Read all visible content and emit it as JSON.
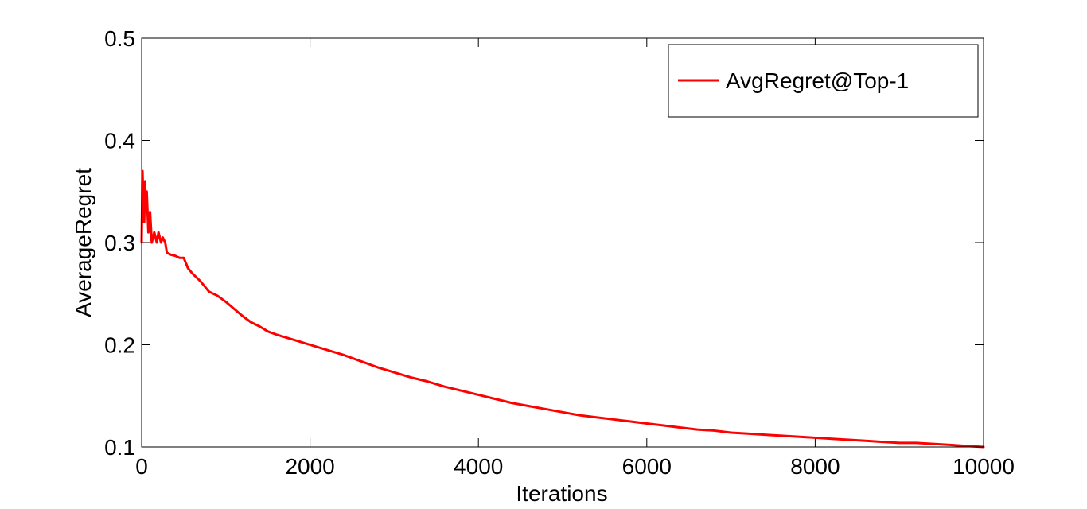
{
  "chart_data": {
    "type": "line",
    "title": "",
    "xlabel": "Iterations",
    "ylabel": "AverageRegret",
    "xlim": [
      0,
      10000
    ],
    "ylim": [
      0.1,
      0.5
    ],
    "xticks": [
      0,
      2000,
      4000,
      6000,
      8000,
      10000
    ],
    "yticks": [
      0.1,
      0.2,
      0.3,
      0.4,
      0.5
    ],
    "xtick_labels": [
      "0",
      "2000",
      "4000",
      "6000",
      "8000",
      "10000"
    ],
    "ytick_labels": [
      "0.1",
      "0.2",
      "0.3",
      "0.4",
      "0.5"
    ],
    "grid": false,
    "legend": {
      "position": "top-right"
    },
    "series": [
      {
        "name": "AvgRegret@Top-1",
        "color": "#ff0000",
        "x": [
          0,
          10,
          20,
          30,
          40,
          50,
          60,
          80,
          100,
          120,
          150,
          180,
          200,
          230,
          250,
          280,
          300,
          350,
          400,
          450,
          500,
          550,
          600,
          700,
          800,
          900,
          1000,
          1100,
          1200,
          1300,
          1400,
          1500,
          1600,
          1800,
          2000,
          2200,
          2400,
          2600,
          2800,
          3000,
          3200,
          3400,
          3600,
          3800,
          4000,
          4200,
          4400,
          4600,
          4800,
          5000,
          5200,
          5400,
          5600,
          5800,
          6000,
          6200,
          6400,
          6600,
          6800,
          7000,
          7200,
          7400,
          7600,
          7800,
          8000,
          8200,
          8400,
          8600,
          8800,
          9000,
          9200,
          9400,
          9600,
          9800,
          10000
        ],
        "y": [
          0.3,
          0.37,
          0.34,
          0.32,
          0.36,
          0.33,
          0.35,
          0.31,
          0.33,
          0.3,
          0.31,
          0.3,
          0.31,
          0.3,
          0.305,
          0.3,
          0.29,
          0.288,
          0.287,
          0.285,
          0.285,
          0.275,
          0.27,
          0.262,
          0.252,
          0.248,
          0.242,
          0.235,
          0.228,
          0.222,
          0.218,
          0.213,
          0.21,
          0.205,
          0.2,
          0.195,
          0.19,
          0.184,
          0.178,
          0.173,
          0.168,
          0.164,
          0.159,
          0.155,
          0.151,
          0.147,
          0.143,
          0.14,
          0.137,
          0.134,
          0.131,
          0.129,
          0.127,
          0.125,
          0.123,
          0.121,
          0.119,
          0.117,
          0.116,
          0.114,
          0.113,
          0.112,
          0.111,
          0.11,
          0.109,
          0.108,
          0.107,
          0.106,
          0.105,
          0.104,
          0.104,
          0.103,
          0.102,
          0.101,
          0.1
        ]
      }
    ]
  }
}
